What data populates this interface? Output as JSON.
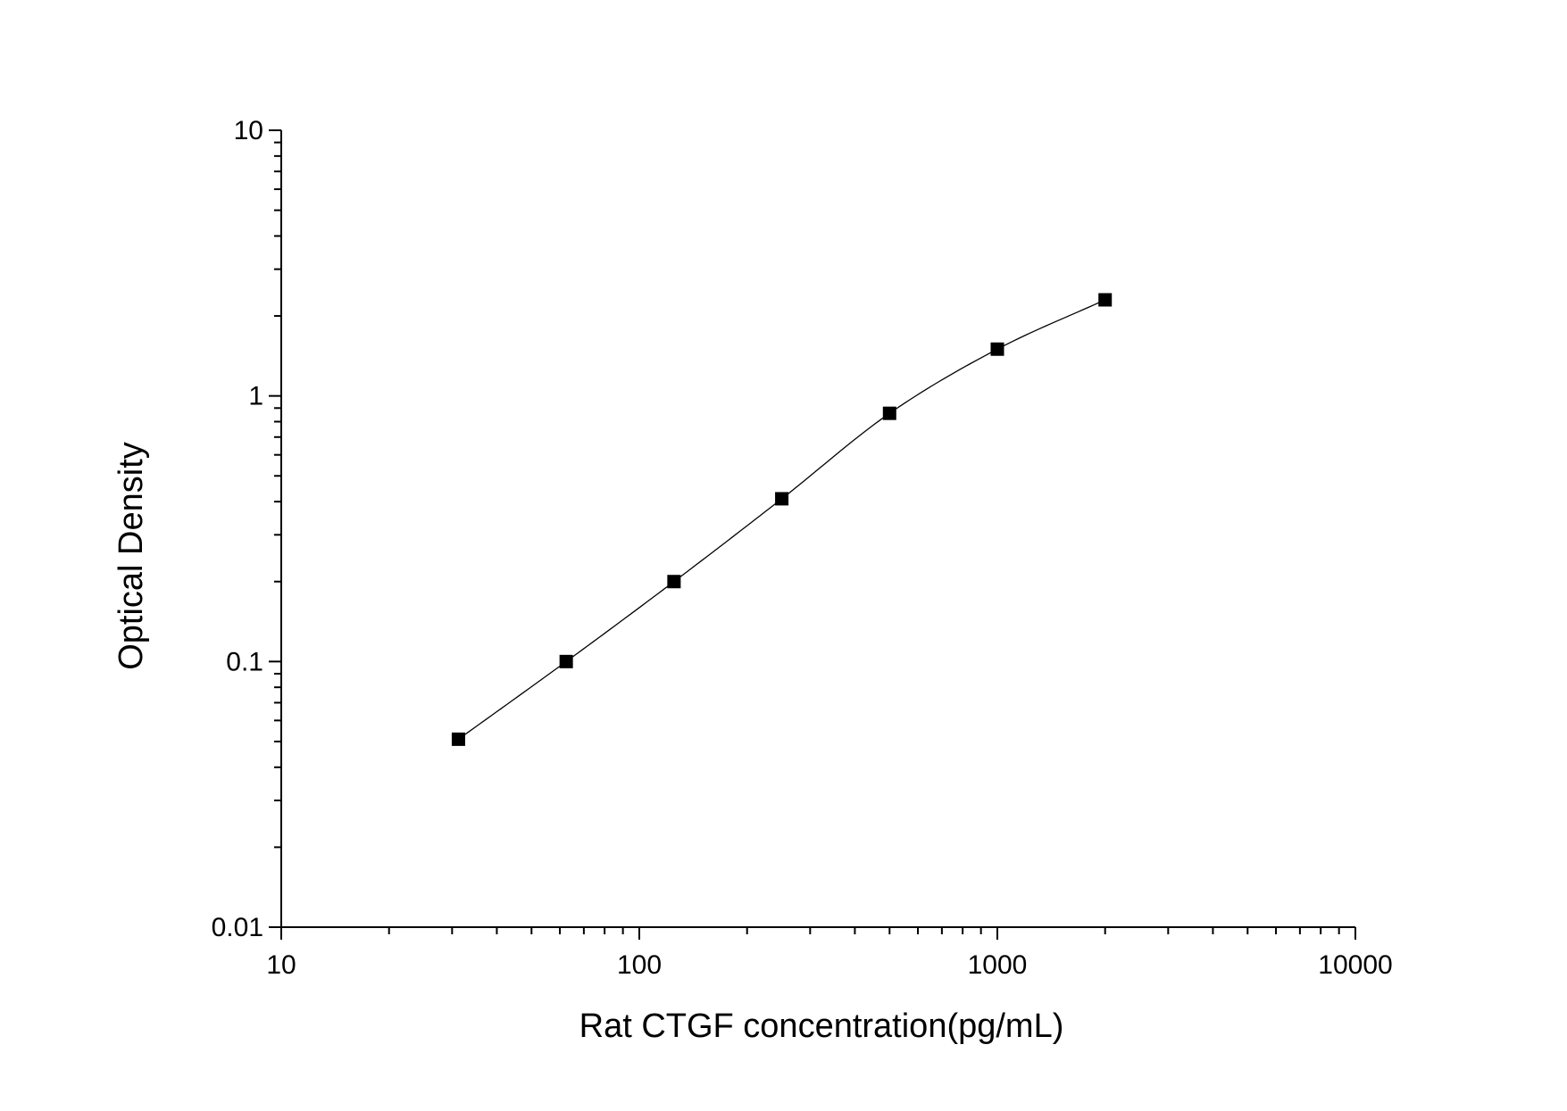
{
  "chart_data": {
    "type": "scatter",
    "xlabel": "Rat CTGF concentration(pg/mL)",
    "ylabel": "Optical Density",
    "x_scale": "log",
    "y_scale": "log",
    "xlim": [
      10,
      10000
    ],
    "ylim": [
      0.01,
      10
    ],
    "x_ticks": [
      10,
      100,
      1000,
      10000
    ],
    "x_tick_labels": [
      "10",
      "100",
      "1000",
      "10000"
    ],
    "y_ticks": [
      0.01,
      0.1,
      1,
      10
    ],
    "y_tick_labels": [
      "0.01",
      "0.1",
      "1",
      "10"
    ],
    "grid": false,
    "legend": "none",
    "series": [
      {
        "marker": "square",
        "fit_line": true,
        "color": "#000000",
        "x": [
          31.25,
          62.5,
          125,
          250,
          500,
          1000,
          2000
        ],
        "y": [
          0.051,
          0.1,
          0.2,
          0.41,
          0.86,
          1.5,
          2.3
        ]
      }
    ]
  }
}
